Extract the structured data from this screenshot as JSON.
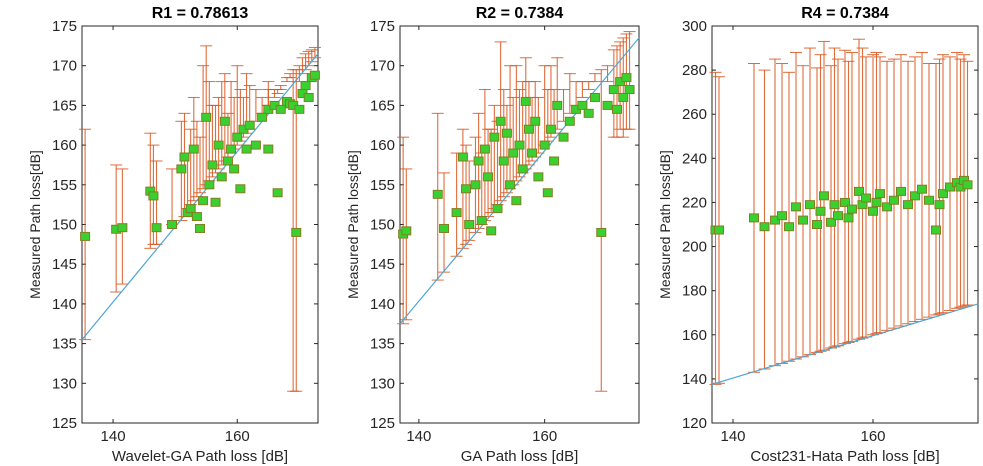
{
  "colors": {
    "error_bar": "#d9541a",
    "marker_fill": "#39d130",
    "marker_edge": "#7f7f22",
    "fit_line": "#4da6d6",
    "axis": "#262626"
  },
  "chart_data": [
    {
      "type": "scatter",
      "title": "R1 = 0.78613",
      "xlabel": "Wavelet-GA Path loss [dB]",
      "ylabel": "Measured Path loss[dB]",
      "xlim": [
        135,
        173
      ],
      "ylim": [
        125,
        175
      ],
      "xticks": [
        140,
        160
      ],
      "yticks": [
        125,
        130,
        135,
        140,
        145,
        150,
        155,
        160,
        165,
        170,
        175
      ],
      "fit_line": [
        [
          135,
          135.5
        ],
        [
          173,
          171.5
        ]
      ],
      "points": [
        {
          "x": 135.5,
          "y": 148.5,
          "lo": 135.5,
          "hi": 162
        },
        {
          "x": 140.5,
          "y": 149.4,
          "lo": 141.5,
          "hi": 157.5
        },
        {
          "x": 141.5,
          "y": 149.6,
          "lo": 142.5,
          "hi": 157
        },
        {
          "x": 146,
          "y": 154.2,
          "lo": 147,
          "hi": 161.5
        },
        {
          "x": 146.5,
          "y": 153.6,
          "lo": 147.5,
          "hi": 160
        },
        {
          "x": 147,
          "y": 149.6,
          "lo": 147.5,
          "hi": 158
        },
        {
          "x": 149.5,
          "y": 150,
          "lo": 150,
          "hi": 157
        },
        {
          "x": 151,
          "y": 157,
          "lo": 150.5,
          "hi": 163
        },
        {
          "x": 151.5,
          "y": 158.5,
          "lo": 151,
          "hi": 164
        },
        {
          "x": 152,
          "y": 151.5,
          "lo": 152,
          "hi": 159
        },
        {
          "x": 152.5,
          "y": 152,
          "lo": 152.5,
          "hi": 162
        },
        {
          "x": 153,
          "y": 159.5,
          "lo": 153,
          "hi": 166
        },
        {
          "x": 153.5,
          "y": 151,
          "lo": 153.5,
          "hi": 163
        },
        {
          "x": 154,
          "y": 149.5,
          "lo": 154,
          "hi": 161
        },
        {
          "x": 154.5,
          "y": 153,
          "lo": 154.5,
          "hi": 170
        },
        {
          "x": 155,
          "y": 163.5,
          "lo": 155,
          "hi": 172.5
        },
        {
          "x": 155.5,
          "y": 155,
          "lo": 155.5,
          "hi": 168
        },
        {
          "x": 156,
          "y": 157.5,
          "lo": 156,
          "hi": 165
        },
        {
          "x": 156.5,
          "y": 152.8,
          "lo": 156.5,
          "hi": 165
        },
        {
          "x": 157,
          "y": 160,
          "lo": 157,
          "hi": 166
        },
        {
          "x": 157.5,
          "y": 156,
          "lo": 157.5,
          "hi": 168
        },
        {
          "x": 158,
          "y": 163,
          "lo": 158,
          "hi": 169
        },
        {
          "x": 158.5,
          "y": 158,
          "lo": 158.5,
          "hi": 164
        },
        {
          "x": 159,
          "y": 159.5,
          "lo": 159,
          "hi": 168
        },
        {
          "x": 159.5,
          "y": 157,
          "lo": 159.5,
          "hi": 166
        },
        {
          "x": 160,
          "y": 161,
          "lo": 160,
          "hi": 170
        },
        {
          "x": 160.5,
          "y": 154.5,
          "lo": 160.5,
          "hi": 167
        },
        {
          "x": 161,
          "y": 162,
          "lo": 161,
          "hi": 166
        },
        {
          "x": 161.5,
          "y": 159.5,
          "lo": 161.5,
          "hi": 169
        },
        {
          "x": 162,
          "y": 162.5,
          "lo": 162,
          "hi": 167.5
        },
        {
          "x": 163,
          "y": 160,
          "lo": 163,
          "hi": 167
        },
        {
          "x": 164,
          "y": 163.5,
          "lo": 164,
          "hi": 166
        },
        {
          "x": 165,
          "y": 164.5,
          "lo": 165,
          "hi": 168
        },
        {
          "x": 165,
          "y": 159.5,
          "lo": 165,
          "hi": 167
        },
        {
          "x": 166,
          "y": 165,
          "lo": 166,
          "hi": 167
        },
        {
          "x": 166.5,
          "y": 154,
          "lo": 166.5,
          "hi": 167
        },
        {
          "x": 167,
          "y": 164.5,
          "lo": 167,
          "hi": 167.5
        },
        {
          "x": 168,
          "y": 165.5,
          "lo": 168,
          "hi": 168.5
        },
        {
          "x": 168.5,
          "y": 165.2,
          "lo": 168.5,
          "hi": 169
        },
        {
          "x": 169,
          "y": 165,
          "lo": 129,
          "hi": 169.5
        },
        {
          "x": 169.5,
          "y": 149,
          "lo": 129,
          "hi": 169.5
        },
        {
          "x": 170,
          "y": 164.5,
          "lo": 168,
          "hi": 170
        },
        {
          "x": 170.5,
          "y": 166.5,
          "lo": 169,
          "hi": 171
        },
        {
          "x": 171,
          "y": 167.5,
          "lo": 169.5,
          "hi": 171.5
        },
        {
          "x": 171.5,
          "y": 166,
          "lo": 170,
          "hi": 171.8
        },
        {
          "x": 172,
          "y": 168.5,
          "lo": 170.5,
          "hi": 172
        },
        {
          "x": 172.5,
          "y": 168.8,
          "lo": 171,
          "hi": 172.3
        }
      ]
    },
    {
      "type": "scatter",
      "title": "R2 = 0.7384",
      "xlabel": "GA Path loss [dB]",
      "ylabel": "Measured Path loss[dB]",
      "xlim": [
        137,
        175
      ],
      "ylim": [
        125,
        175
      ],
      "xticks": [
        140,
        160
      ],
      "yticks": [
        125,
        130,
        135,
        140,
        145,
        150,
        155,
        160,
        165,
        170,
        175
      ],
      "fit_line": [
        [
          137,
          137.5
        ],
        [
          175,
          173.5
        ]
      ],
      "points": [
        {
          "x": 137.5,
          "y": 148.8,
          "lo": 137.5,
          "hi": 161
        },
        {
          "x": 138,
          "y": 149.2,
          "lo": 138,
          "hi": 157
        },
        {
          "x": 143,
          "y": 153.8,
          "lo": 143,
          "hi": 164
        },
        {
          "x": 144,
          "y": 149.5,
          "lo": 144,
          "hi": 156.5
        },
        {
          "x": 146,
          "y": 151.5,
          "lo": 146,
          "hi": 159
        },
        {
          "x": 147,
          "y": 158.5,
          "lo": 147,
          "hi": 162
        },
        {
          "x": 147.5,
          "y": 154.5,
          "lo": 147.5,
          "hi": 160
        },
        {
          "x": 148,
          "y": 150,
          "lo": 148,
          "hi": 158
        },
        {
          "x": 149,
          "y": 155,
          "lo": 149,
          "hi": 161
        },
        {
          "x": 149.5,
          "y": 158,
          "lo": 149.5,
          "hi": 164
        },
        {
          "x": 150,
          "y": 150.5,
          "lo": 150,
          "hi": 159
        },
        {
          "x": 150.5,
          "y": 159.5,
          "lo": 150.5,
          "hi": 167
        },
        {
          "x": 151,
          "y": 156,
          "lo": 151,
          "hi": 162
        },
        {
          "x": 151.5,
          "y": 149.2,
          "lo": 151.5,
          "hi": 162
        },
        {
          "x": 152,
          "y": 161,
          "lo": 152,
          "hi": 165
        },
        {
          "x": 152.5,
          "y": 152,
          "lo": 152.5,
          "hi": 163
        },
        {
          "x": 153,
          "y": 163,
          "lo": 153,
          "hi": 173
        },
        {
          "x": 153.5,
          "y": 158,
          "lo": 153.5,
          "hi": 167
        },
        {
          "x": 154,
          "y": 161.5,
          "lo": 154,
          "hi": 165
        },
        {
          "x": 154.5,
          "y": 155,
          "lo": 154.5,
          "hi": 170
        },
        {
          "x": 155,
          "y": 159,
          "lo": 155,
          "hi": 166
        },
        {
          "x": 155.5,
          "y": 153,
          "lo": 155.5,
          "hi": 170
        },
        {
          "x": 156,
          "y": 160,
          "lo": 156,
          "hi": 167
        },
        {
          "x": 156.5,
          "y": 157,
          "lo": 156.5,
          "hi": 168
        },
        {
          "x": 157,
          "y": 165.5,
          "lo": 157,
          "hi": 171
        },
        {
          "x": 157.5,
          "y": 162,
          "lo": 157.5,
          "hi": 168
        },
        {
          "x": 158,
          "y": 159,
          "lo": 158,
          "hi": 166
        },
        {
          "x": 158.5,
          "y": 163,
          "lo": 158.5,
          "hi": 168
        },
        {
          "x": 159,
          "y": 156,
          "lo": 159,
          "hi": 166
        },
        {
          "x": 160,
          "y": 160,
          "lo": 160,
          "hi": 170
        },
        {
          "x": 160.5,
          "y": 154,
          "lo": 160.5,
          "hi": 167
        },
        {
          "x": 161,
          "y": 162,
          "lo": 161,
          "hi": 170
        },
        {
          "x": 161.5,
          "y": 158,
          "lo": 161.5,
          "hi": 167
        },
        {
          "x": 162,
          "y": 165,
          "lo": 162,
          "hi": 171
        },
        {
          "x": 163,
          "y": 161,
          "lo": 163,
          "hi": 167
        },
        {
          "x": 164,
          "y": 163,
          "lo": 164,
          "hi": 169
        },
        {
          "x": 165,
          "y": 164.5,
          "lo": 165,
          "hi": 168
        },
        {
          "x": 166,
          "y": 165,
          "lo": 166,
          "hi": 168
        },
        {
          "x": 167,
          "y": 164,
          "lo": 167,
          "hi": 168
        },
        {
          "x": 168,
          "y": 166,
          "lo": 168,
          "hi": 169
        },
        {
          "x": 169,
          "y": 149,
          "lo": 129,
          "hi": 169.5
        },
        {
          "x": 170,
          "y": 165,
          "lo": 168,
          "hi": 170
        },
        {
          "x": 171,
          "y": 167,
          "lo": 161,
          "hi": 172
        },
        {
          "x": 171.5,
          "y": 164.5,
          "lo": 161,
          "hi": 172.5
        },
        {
          "x": 172,
          "y": 168,
          "lo": 162,
          "hi": 173
        },
        {
          "x": 172.5,
          "y": 166,
          "lo": 161,
          "hi": 173.5
        },
        {
          "x": 173,
          "y": 168.5,
          "lo": 162,
          "hi": 174
        },
        {
          "x": 173.5,
          "y": 167,
          "lo": 162,
          "hi": 174.3
        }
      ]
    },
    {
      "type": "scatter",
      "title": "R4 = 0.7384",
      "xlabel": "Cost231-Hata Path loss [dB]",
      "ylabel": "Measured Path loss[dB]",
      "xlim": [
        137,
        175
      ],
      "ylim": [
        120,
        300
      ],
      "xticks": [
        140,
        160
      ],
      "yticks": [
        120,
        140,
        160,
        180,
        200,
        220,
        240,
        260,
        280,
        300
      ],
      "fit_line": [
        [
          137,
          137.5
        ],
        [
          175,
          174
        ]
      ],
      "points": [
        {
          "x": 137.5,
          "y": 207.5,
          "lo": 137.5,
          "hi": 279
        },
        {
          "x": 138,
          "y": 207.5,
          "lo": 138,
          "hi": 277
        },
        {
          "x": 143,
          "y": 213,
          "lo": 143,
          "hi": 283
        },
        {
          "x": 144.5,
          "y": 209,
          "lo": 144.5,
          "hi": 280
        },
        {
          "x": 146,
          "y": 212,
          "lo": 146,
          "hi": 285
        },
        {
          "x": 147,
          "y": 214,
          "lo": 147,
          "hi": 283
        },
        {
          "x": 148,
          "y": 209,
          "lo": 148,
          "hi": 279
        },
        {
          "x": 149,
          "y": 218,
          "lo": 149,
          "hi": 288
        },
        {
          "x": 150,
          "y": 212,
          "lo": 150,
          "hi": 282
        },
        {
          "x": 151,
          "y": 219,
          "lo": 151,
          "hi": 290
        },
        {
          "x": 152,
          "y": 210,
          "lo": 152,
          "hi": 281
        },
        {
          "x": 152.5,
          "y": 216,
          "lo": 152.5,
          "hi": 287
        },
        {
          "x": 153,
          "y": 223,
          "lo": 153,
          "hi": 293
        },
        {
          "x": 154,
          "y": 211,
          "lo": 154,
          "hi": 282
        },
        {
          "x": 154.5,
          "y": 219,
          "lo": 154.5,
          "hi": 290
        },
        {
          "x": 155,
          "y": 214,
          "lo": 155,
          "hi": 285
        },
        {
          "x": 156,
          "y": 220,
          "lo": 156,
          "hi": 289
        },
        {
          "x": 156.5,
          "y": 213,
          "lo": 156.5,
          "hi": 284
        },
        {
          "x": 157,
          "y": 217,
          "lo": 157,
          "hi": 288
        },
        {
          "x": 158,
          "y": 225,
          "lo": 158,
          "hi": 294
        },
        {
          "x": 158.5,
          "y": 219,
          "lo": 158.5,
          "hi": 290
        },
        {
          "x": 159,
          "y": 222,
          "lo": 159,
          "hi": 286
        },
        {
          "x": 160,
          "y": 216,
          "lo": 160,
          "hi": 287
        },
        {
          "x": 160.5,
          "y": 220,
          "lo": 160.5,
          "hi": 288
        },
        {
          "x": 161,
          "y": 224,
          "lo": 161,
          "hi": 286
        },
        {
          "x": 162,
          "y": 218,
          "lo": 162,
          "hi": 284
        },
        {
          "x": 163,
          "y": 221,
          "lo": 163,
          "hi": 285
        },
        {
          "x": 164,
          "y": 225,
          "lo": 164,
          "hi": 287
        },
        {
          "x": 165,
          "y": 219,
          "lo": 165,
          "hi": 284
        },
        {
          "x": 166,
          "y": 223,
          "lo": 166,
          "hi": 286
        },
        {
          "x": 167,
          "y": 226,
          "lo": 167,
          "hi": 288
        },
        {
          "x": 168,
          "y": 221,
          "lo": 168,
          "hi": 283
        },
        {
          "x": 169,
          "y": 207.5,
          "lo": 169,
          "hi": 283
        },
        {
          "x": 169.5,
          "y": 219,
          "lo": 169.5,
          "hi": 285
        },
        {
          "x": 170,
          "y": 224,
          "lo": 170,
          "hi": 287
        },
        {
          "x": 171,
          "y": 227,
          "lo": 171,
          "hi": 286
        },
        {
          "x": 172,
          "y": 229,
          "lo": 172,
          "hi": 288
        },
        {
          "x": 172.5,
          "y": 227,
          "lo": 172.5,
          "hi": 285
        },
        {
          "x": 173,
          "y": 230,
          "lo": 173,
          "hi": 287
        },
        {
          "x": 173.5,
          "y": 228,
          "lo": 173.5,
          "hi": 284
        }
      ]
    }
  ]
}
